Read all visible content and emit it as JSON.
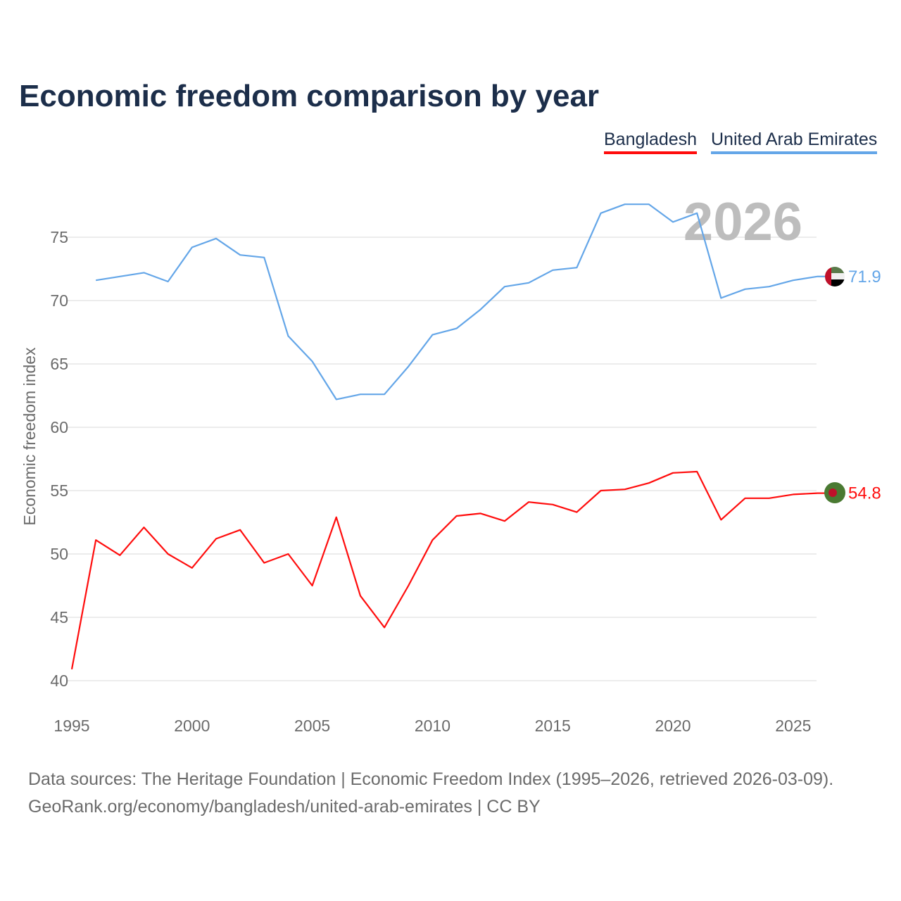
{
  "title": "Economic freedom comparison by year",
  "legend": [
    {
      "label": "Bangladesh",
      "color": "#ff0d0d"
    },
    {
      "label": "United Arab Emirates",
      "color": "#64a6e8"
    }
  ],
  "footer": {
    "line1": "Data sources: The Heritage Foundation | Economic Freedom Index (1995–2026, retrieved 2026-03-09).",
    "line2": "GeoRank.org/economy/bangladesh/united-arab-emirates | CC BY"
  },
  "chart_data": {
    "type": "line",
    "title": "Economic freedom comparison by year",
    "xlabel": "",
    "ylabel": "Economic freedom index",
    "xlim": [
      1995,
      2026
    ],
    "ylim": [
      40,
      78
    ],
    "yticks": [
      40,
      45,
      50,
      55,
      60,
      65,
      70,
      75
    ],
    "xticks": [
      1995,
      2000,
      2005,
      2010,
      2015,
      2020,
      2025
    ],
    "grid": true,
    "legend_position": "top-right",
    "year_watermark": "2026",
    "series": [
      {
        "name": "Bangladesh",
        "color": "#ff0d0d",
        "end_label": "54.8",
        "x": [
          1995,
          1996,
          1997,
          1998,
          1999,
          2000,
          2001,
          2002,
          2003,
          2004,
          2005,
          2006,
          2007,
          2008,
          2009,
          2010,
          2011,
          2012,
          2013,
          2014,
          2015,
          2016,
          2017,
          2018,
          2019,
          2020,
          2021,
          2022,
          2023,
          2024,
          2025,
          2026
        ],
        "values": [
          40.9,
          51.1,
          49.9,
          52.1,
          50.0,
          48.9,
          51.2,
          51.9,
          49.3,
          50.0,
          47.5,
          52.9,
          46.7,
          44.2,
          47.5,
          51.1,
          53.0,
          53.2,
          52.6,
          54.1,
          53.9,
          53.3,
          55.0,
          55.1,
          55.6,
          56.4,
          56.5,
          52.7,
          54.4,
          54.4,
          54.7,
          54.8
        ]
      },
      {
        "name": "United Arab Emirates",
        "color": "#64a6e8",
        "end_label": "71.9",
        "x": [
          1996,
          1997,
          1998,
          1999,
          2000,
          2001,
          2002,
          2003,
          2004,
          2005,
          2006,
          2007,
          2008,
          2009,
          2010,
          2011,
          2012,
          2013,
          2014,
          2015,
          2016,
          2017,
          2018,
          2019,
          2020,
          2021,
          2022,
          2023,
          2024,
          2025,
          2026
        ],
        "values": [
          71.6,
          71.9,
          72.2,
          71.5,
          74.2,
          74.9,
          73.6,
          73.4,
          67.2,
          65.2,
          62.2,
          62.6,
          62.6,
          64.8,
          67.3,
          67.8,
          69.3,
          71.1,
          71.4,
          72.4,
          72.6,
          76.9,
          77.6,
          77.6,
          76.2,
          76.9,
          70.2,
          70.9,
          71.1,
          71.6,
          71.9
        ]
      }
    ]
  }
}
